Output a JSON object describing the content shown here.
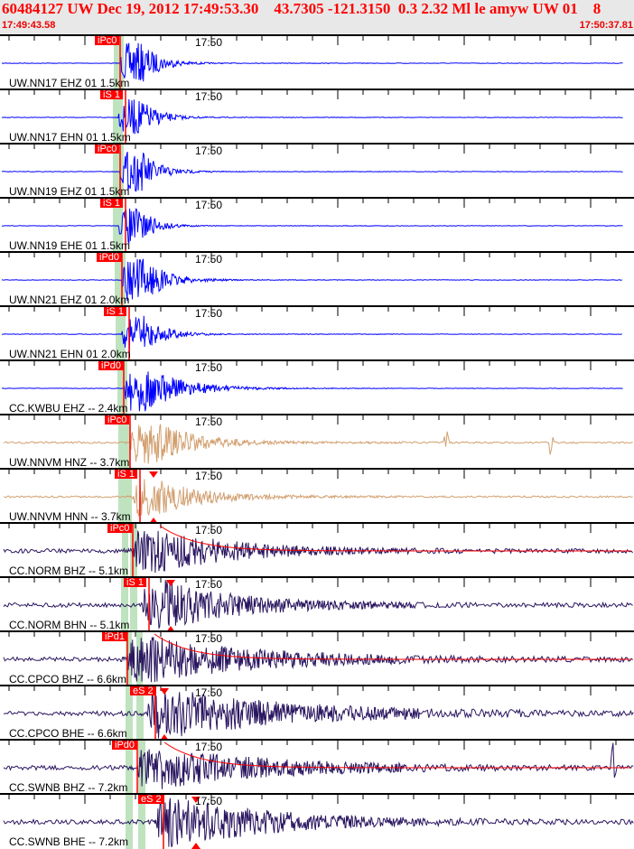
{
  "header": {
    "title": "60484127 UW Dec 19, 2012 17:49:53.30    43.7305 -121.3150  0.3 2.32 Ml le amyw UW 01    8",
    "start_time": "17:49:43.58",
    "end_time": "17:50:37.81"
  },
  "time_tick_label": "17:50",
  "colors": {
    "blue": "#0000ff",
    "tan": "#d2a070",
    "navy": "#2a1660",
    "pick": "#ff0000",
    "window": "#bfe3bf"
  },
  "channels": [
    {
      "label": "UW.NN17 EHZ 01 1.5km",
      "pick": "iPc0",
      "color": "blue"
    },
    {
      "label": "UW.NN17 EHN 01 1.5km",
      "pick": "iS 1",
      "color": "blue"
    },
    {
      "label": "UW.NN19 EHZ 01 1.5km",
      "pick": "iPc0",
      "color": "blue"
    },
    {
      "label": "UW.NN19 EHE 01 1.5km",
      "pick": "iS 1",
      "color": "blue"
    },
    {
      "label": "UW.NN21 EHZ 01 2.0km",
      "pick": "iPd0",
      "color": "blue"
    },
    {
      "label": "UW.NN21 EHN 01 2.0km",
      "pick": "iS 1",
      "color": "blue"
    },
    {
      "label": "CC.KWBU EHZ -- 2.4km",
      "pick": "iPd0",
      "color": "blue"
    },
    {
      "label": "UW.NNVM HNZ -- 3.7km",
      "pick": "iPc0",
      "color": "tan"
    },
    {
      "label": "UW.NNVM HNN -- 3.7km",
      "pick": "iS 1",
      "color": "tan"
    },
    {
      "label": "CC.NORM BHZ -- 5.1km",
      "pick": "iPc0",
      "color": "navy"
    },
    {
      "label": "CC.NORM BHN -- 5.1km",
      "pick": "iS 1",
      "color": "navy"
    },
    {
      "label": "CC.CPCO BHZ -- 6.6km",
      "pick": "iPd1",
      "color": "navy"
    },
    {
      "label": "CC.CPCO BHE -- 6.6km",
      "pick": "eS 2",
      "color": "navy"
    },
    {
      "label": "CC.SWNB BHZ -- 7.2km",
      "pick": "iPd0",
      "color": "navy"
    },
    {
      "label": "CC.SWNB BHE -- 7.2km",
      "pick": "eS 2",
      "color": "navy"
    }
  ]
}
